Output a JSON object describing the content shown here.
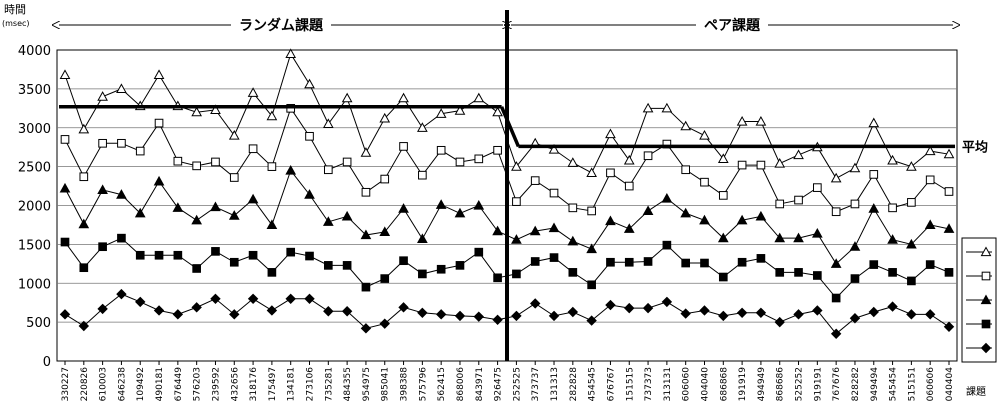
{
  "chart_data": {
    "type": "line",
    "ylabel": "時間",
    "yunit": "(msec)",
    "xlabel": "課題",
    "ylim": [
      0,
      4000
    ],
    "yticks": [
      0,
      500,
      1000,
      1500,
      2000,
      2500,
      3000,
      3500,
      4000
    ],
    "grid": "horizontal",
    "legend": "right",
    "segments": [
      {
        "label": "ランダム課題",
        "range": [
          0,
          23
        ]
      },
      {
        "label": "ペア課題",
        "range": [
          24,
          47
        ]
      }
    ],
    "categories": [
      "330227",
      "220826",
      "610003",
      "646238",
      "109492",
      "490181",
      "676449",
      "576203",
      "239592",
      "432656",
      "318176",
      "175497",
      "134181",
      "273106",
      "735281",
      "484355",
      "954975",
      "985041",
      "398388",
      "575796",
      "562415",
      "868006",
      "843971",
      "926475",
      "252525",
      "373737",
      "131313",
      "282828",
      "454545",
      "676767",
      "151515",
      "737373",
      "313131",
      "606060",
      "404040",
      "686868",
      "191919",
      "494949",
      "868686",
      "525252",
      "919191",
      "767676",
      "828282",
      "949494",
      "545454",
      "515151",
      "060606",
      "040404"
    ],
    "series": [
      {
        "marker": "triangle-open",
        "values": [
          3680,
          2980,
          3400,
          3500,
          3280,
          3680,
          3280,
          3200,
          3230,
          2900,
          3450,
          3150,
          3950,
          3560,
          3050,
          3380,
          2680,
          3120,
          3380,
          3000,
          3180,
          3220,
          3380,
          3200,
          2500,
          2800,
          2720,
          2550,
          2420,
          2920,
          2580,
          3250,
          3250,
          3020,
          2900,
          2600,
          3080,
          3080,
          2540,
          2650,
          2750,
          2350,
          2480,
          3060,
          2580,
          2500,
          2700,
          2660
        ]
      },
      {
        "marker": "square-open",
        "values": [
          2850,
          2370,
          2800,
          2800,
          2700,
          3060,
          2570,
          2510,
          2560,
          2360,
          2730,
          2500,
          3250,
          2890,
          2460,
          2560,
          2170,
          2340,
          2760,
          2390,
          2710,
          2560,
          2600,
          2710,
          2050,
          2320,
          2160,
          1970,
          1930,
          2420,
          2250,
          2640,
          2790,
          2460,
          2300,
          2130,
          2520,
          2520,
          2020,
          2070,
          2230,
          1920,
          2020,
          2400,
          1970,
          2040,
          2330,
          2180
        ]
      },
      {
        "marker": "triangle-filled",
        "values": [
          2220,
          1760,
          2200,
          2140,
          1900,
          2310,
          1970,
          1810,
          1980,
          1870,
          2080,
          1750,
          2450,
          2140,
          1790,
          1860,
          1620,
          1660,
          1960,
          1570,
          2010,
          1900,
          2000,
          1670,
          1560,
          1670,
          1710,
          1540,
          1440,
          1800,
          1700,
          1930,
          2090,
          1900,
          1810,
          1580,
          1810,
          1860,
          1580,
          1580,
          1640,
          1250,
          1470,
          1960,
          1560,
          1500,
          1750,
          1700
        ]
      },
      {
        "marker": "square-filled",
        "values": [
          1530,
          1200,
          1470,
          1580,
          1360,
          1360,
          1360,
          1190,
          1410,
          1270,
          1360,
          1140,
          1400,
          1350,
          1230,
          1230,
          950,
          1060,
          1290,
          1120,
          1180,
          1230,
          1400,
          1070,
          1120,
          1280,
          1330,
          1140,
          980,
          1270,
          1270,
          1280,
          1490,
          1260,
          1260,
          1080,
          1270,
          1320,
          1140,
          1140,
          1100,
          810,
          1060,
          1240,
          1140,
          1030,
          1240,
          1140
        ]
      },
      {
        "marker": "diamond-filled",
        "values": [
          600,
          450,
          670,
          860,
          760,
          650,
          600,
          690,
          800,
          600,
          800,
          650,
          800,
          800,
          640,
          640,
          420,
          480,
          690,
          620,
          600,
          580,
          570,
          530,
          580,
          740,
          580,
          630,
          520,
          720,
          680,
          680,
          760,
          610,
          650,
          580,
          620,
          620,
          500,
          600,
          650,
          350,
          550,
          630,
          700,
          600,
          600,
          440
        ]
      }
    ],
    "reference_lines": [
      {
        "label": "平均",
        "segment": 0,
        "value": 3270
      },
      {
        "label": "平均",
        "segment": 1,
        "value": 2760
      }
    ]
  }
}
